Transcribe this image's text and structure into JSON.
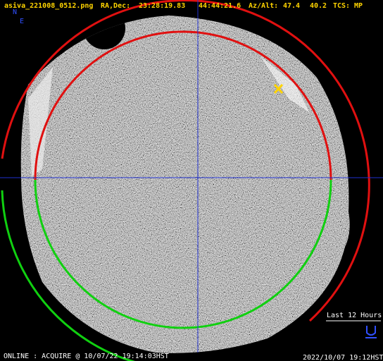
{
  "header": {
    "filename": "asiva_221008_0512.png",
    "radec_label": "RA,Dec:",
    "ra": "23:28:19.83",
    "dec": "44:44:21.6",
    "azalt_label": "Az/Alt:",
    "az": "47.4",
    "alt": "40.2",
    "tcs_label": "TCS:",
    "tcs": "MP"
  },
  "compass": {
    "north": "N",
    "east": "E"
  },
  "legend": {
    "label": "Last 12 Hours"
  },
  "footer": {
    "status": "ONLINE : ACQUIRE @ 10/07/22 19:14:03HST",
    "timestamp": "2022/10/07 19:12HST"
  }
}
